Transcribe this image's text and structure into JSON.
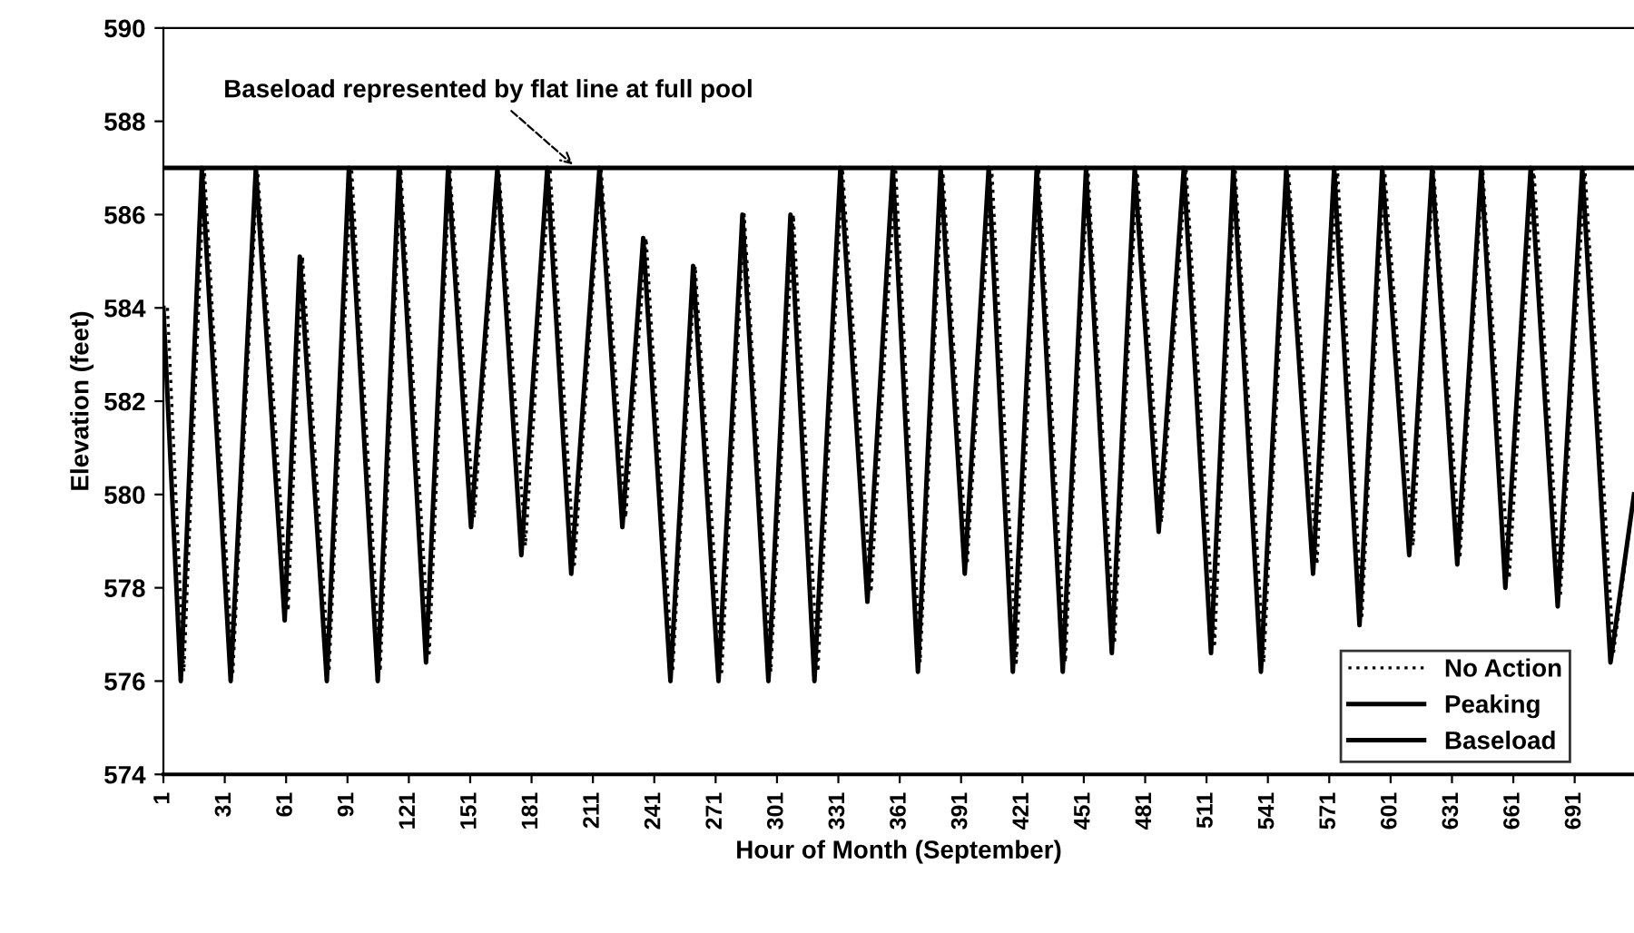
{
  "chart_data": {
    "type": "line",
    "xlabel": "Hour of Month (September)",
    "ylabel": "Elevation (feet)",
    "xlim": [
      1,
      720
    ],
    "xticks": [
      1,
      31,
      61,
      91,
      121,
      151,
      181,
      211,
      241,
      271,
      301,
      331,
      361,
      391,
      421,
      451,
      481,
      511,
      541,
      571,
      601,
      631,
      661,
      691
    ],
    "ylim": [
      574,
      590
    ],
    "yticks": [
      574,
      576,
      578,
      580,
      582,
      584,
      586,
      588,
      590
    ],
    "grid": false,
    "legend": "bottom right",
    "marker": "none",
    "annotations": [
      {
        "text": "Baseload represented by flat line at full pool",
        "x": 203,
        "y": 587
      }
    ],
    "series": [
      {
        "name": "No Action",
        "color": "#000000",
        "line_style": "dotted",
        "x": [
          3,
          11,
          21,
          35,
          47,
          62,
          69,
          82,
          93,
          107,
          117,
          131,
          141,
          153,
          165,
          178,
          190,
          202,
          215,
          227,
          237,
          250,
          261,
          274,
          285,
          298,
          309,
          321,
          333,
          347,
          359,
          371,
          382,
          394,
          406,
          418,
          429,
          442,
          453,
          466,
          477,
          489,
          501,
          515,
          525,
          539,
          551,
          565,
          575,
          587,
          598,
          612,
          622,
          635,
          646,
          659,
          671,
          684,
          696,
          710,
          720
        ],
        "values": [
          584,
          576.2,
          587,
          576.2,
          587,
          577.5,
          585.1,
          576.2,
          587,
          576.2,
          587,
          576.6,
          587,
          579.5,
          587,
          578.9,
          587,
          578.5,
          587,
          579.5,
          585.5,
          576.2,
          584.9,
          576.2,
          586,
          576.2,
          586,
          576.2,
          587,
          577.9,
          587,
          576.4,
          587,
          578.5,
          587,
          576.4,
          587,
          576.4,
          587,
          576.8,
          587,
          579.4,
          587,
          576.8,
          587,
          576.4,
          587,
          578.5,
          587,
          577.4,
          587,
          578.9,
          587,
          578.7,
          587,
          578.2,
          587,
          577.8,
          587,
          576.6,
          580
        ]
      },
      {
        "name": "Peaking",
        "color": "#000000",
        "line_style": "solid",
        "x": [
          1,
          9.5,
          19.8,
          33.9,
          46.2,
          60.3,
          67.7,
          80.9,
          91.7,
          105.8,
          116.1,
          129.4,
          140.2,
          151.4,
          164.3,
          176,
          188.7,
          200.4,
          214.2,
          225.4,
          235.6,
          248.9,
          260,
          272.4,
          284.1,
          296.8,
          307.6,
          319.3,
          332,
          345.2,
          357.6,
          369.9,
          381,
          392.8,
          404.5,
          416.3,
          428,
          440.7,
          452.1,
          464.7,
          475.9,
          487.6,
          499.9,
          513.2,
          524.1,
          537.6,
          550,
          563.1,
          573.4,
          585.8,
          596.9,
          610.1,
          621.3,
          633.6,
          645.3,
          657.1,
          669.5,
          682.7,
          694.7,
          708.5,
          720
        ],
        "values": [
          584,
          576,
          587,
          576,
          587,
          577.3,
          585.1,
          576,
          587,
          576,
          587,
          576.4,
          587,
          579.3,
          587,
          578.7,
          587,
          578.3,
          587,
          579.3,
          585.5,
          576,
          584.9,
          576,
          586,
          576,
          586,
          576,
          587,
          577.7,
          587,
          576.2,
          587,
          578.3,
          587,
          576.2,
          587,
          576.2,
          587,
          576.6,
          587,
          579.2,
          587,
          576.6,
          587,
          576.2,
          587,
          578.3,
          587,
          577.2,
          587,
          578.7,
          587,
          578.5,
          587,
          578,
          587,
          577.6,
          587,
          576.4,
          580
        ]
      },
      {
        "name": "Baseload",
        "color": "#000000",
        "line_style": "solid",
        "x": [
          1,
          720
        ],
        "values": [
          587,
          587
        ]
      }
    ]
  }
}
